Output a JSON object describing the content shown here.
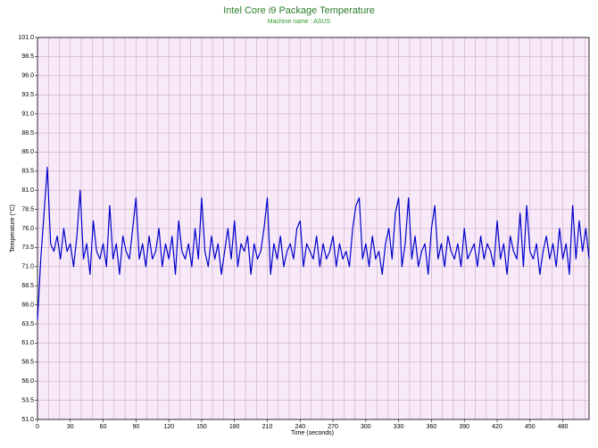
{
  "chart_data": {
    "type": "line",
    "title": "Intel Core i9 Package Temperature",
    "subtitle": "Machine name : ASUS",
    "xlabel": "Time (seconds)",
    "ylabel": "Temperature (°C)",
    "xlim": [
      0,
      504
    ],
    "ylim": [
      51,
      101
    ],
    "xticks": [
      0,
      30,
      60,
      90,
      120,
      150,
      180,
      210,
      240,
      270,
      300,
      330,
      360,
      390,
      420,
      450,
      480
    ],
    "x_minor_ticks": [
      10,
      20,
      40,
      50,
      70,
      80,
      100,
      110,
      130,
      140,
      160,
      170,
      190,
      200,
      220,
      230,
      250,
      260,
      280,
      290,
      310,
      320,
      340,
      350,
      370,
      380,
      400,
      410,
      430,
      440,
      460,
      470,
      490,
      500
    ],
    "yticks": [
      {
        "value": 51,
        "label": "51.0"
      },
      53.5,
      {
        "value": 56,
        "label": "56.0"
      },
      58.5,
      {
        "value": 61,
        "label": "61.0"
      },
      63.5,
      {
        "value": 66,
        "label": "66.0"
      },
      68.5,
      {
        "value": 71,
        "label": "71.0"
      },
      73.5,
      {
        "value": 76,
        "label": "76.0"
      },
      78.5,
      {
        "value": 81,
        "label": "81.0"
      },
      83.5,
      {
        "value": 86,
        "label": "86.0"
      },
      88.5,
      {
        "value": 91,
        "label": "91.0"
      },
      93.5,
      {
        "value": 96,
        "label": "96.0"
      },
      98.5,
      {
        "value": 101,
        "label": "101.0"
      }
    ],
    "grid": true,
    "background": "#f8e9f8",
    "grid_color": "#c9a9c9",
    "x": [
      0,
      3,
      6,
      9,
      12,
      15,
      18,
      21,
      24,
      27,
      30,
      33,
      36,
      39,
      42,
      45,
      48,
      51,
      54,
      57,
      60,
      63,
      66,
      69,
      72,
      75,
      78,
      81,
      84,
      87,
      90,
      93,
      96,
      99,
      102,
      105,
      108,
      111,
      114,
      117,
      120,
      123,
      126,
      129,
      132,
      135,
      138,
      141,
      144,
      147,
      150,
      153,
      156,
      159,
      162,
      165,
      168,
      171,
      174,
      177,
      180,
      183,
      186,
      189,
      192,
      195,
      198,
      201,
      204,
      207,
      210,
      213,
      216,
      219,
      222,
      225,
      228,
      231,
      234,
      237,
      240,
      243,
      246,
      249,
      252,
      255,
      258,
      261,
      264,
      267,
      270,
      273,
      276,
      279,
      282,
      285,
      288,
      291,
      294,
      297,
      300,
      303,
      306,
      309,
      312,
      315,
      318,
      321,
      324,
      327,
      330,
      333,
      336,
      339,
      342,
      345,
      348,
      351,
      354,
      357,
      360,
      363,
      366,
      369,
      372,
      375,
      378,
      381,
      384,
      387,
      390,
      393,
      396,
      399,
      402,
      405,
      408,
      411,
      414,
      417,
      420,
      423,
      426,
      429,
      432,
      435,
      438,
      441,
      444,
      447,
      450,
      453,
      456,
      459,
      462,
      465,
      468,
      471,
      474,
      477,
      480,
      483,
      486,
      489,
      492,
      495,
      498,
      501,
      504
    ],
    "series": [
      {
        "name": "Temperature",
        "color": "#0000cc",
        "values": [
          64,
          72,
          78,
          84,
          74,
          73,
          75,
          72,
          76,
          73,
          74,
          71,
          75,
          81,
          72,
          74,
          70,
          77,
          73,
          72,
          74,
          71,
          79,
          72,
          74,
          70,
          75,
          73,
          72,
          76,
          80,
          72,
          74,
          71,
          75,
          72,
          73,
          76,
          71,
          74,
          72,
          75,
          70,
          77,
          73,
          72,
          74,
          71,
          76,
          72,
          80,
          73,
          71,
          75,
          72,
          74,
          70,
          73,
          76,
          72,
          77,
          71,
          74,
          73,
          75,
          70,
          74,
          72,
          73,
          76,
          80,
          70,
          74,
          72,
          75,
          71,
          73,
          74,
          72,
          76,
          77,
          71,
          74,
          73,
          72,
          75,
          71,
          74,
          72,
          73,
          75,
          71,
          74,
          72,
          73,
          71,
          76,
          79,
          80,
          72,
          74,
          71,
          75,
          72,
          73,
          70,
          74,
          76,
          72,
          78,
          80,
          71,
          74,
          80,
          72,
          75,
          71,
          73,
          74,
          70,
          76,
          79,
          72,
          74,
          71,
          75,
          73,
          72,
          74,
          71,
          76,
          72,
          73,
          74,
          71,
          75,
          72,
          74,
          73,
          71,
          77,
          72,
          74,
          70,
          75,
          73,
          72,
          78,
          71,
          79,
          73,
          72,
          74,
          70,
          73,
          75,
          72,
          74,
          71,
          76,
          72,
          74,
          70,
          79,
          72,
          77,
          73,
          76,
          72
        ]
      }
    ]
  }
}
